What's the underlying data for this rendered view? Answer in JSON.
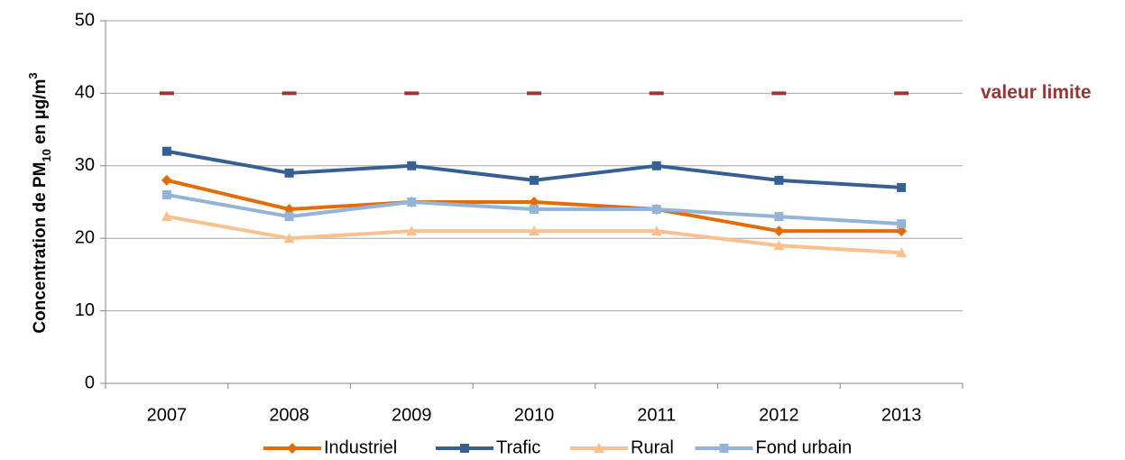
{
  "chart_data": {
    "type": "line",
    "y_label_parts": [
      "Concentration de PM",
      "10",
      " en µg/m",
      "3"
    ],
    "categories": [
      "2007",
      "2008",
      "2009",
      "2010",
      "2011",
      "2012",
      "2013"
    ],
    "series": [
      {
        "name": "Industriel",
        "color": "#e36c09",
        "marker": "diamond",
        "line": true,
        "values": [
          28,
          24,
          25,
          25,
          24,
          21,
          21
        ]
      },
      {
        "name": "Trafic",
        "color": "#366092",
        "marker": "square",
        "line": true,
        "values": [
          32,
          29,
          30,
          28,
          30,
          28,
          27
        ]
      },
      {
        "name": "Rural",
        "color": "#fac090",
        "marker": "triangle",
        "line": true,
        "values": [
          23,
          20,
          21,
          21,
          21,
          19,
          18
        ]
      },
      {
        "name": "Fond urbain",
        "color": "#95b3d7",
        "marker": "square",
        "line": true,
        "values": [
          26,
          23,
          25,
          24,
          24,
          23,
          22
        ]
      },
      {
        "name": "valeur limite",
        "color": "#953735",
        "marker": "dash",
        "line": false,
        "values": [
          40,
          40,
          40,
          40,
          40,
          40,
          40
        ]
      }
    ],
    "ylim": [
      0,
      50
    ],
    "yticks": [
      0,
      10,
      20,
      30,
      40,
      50
    ],
    "grid": true,
    "legend": "bottom"
  }
}
